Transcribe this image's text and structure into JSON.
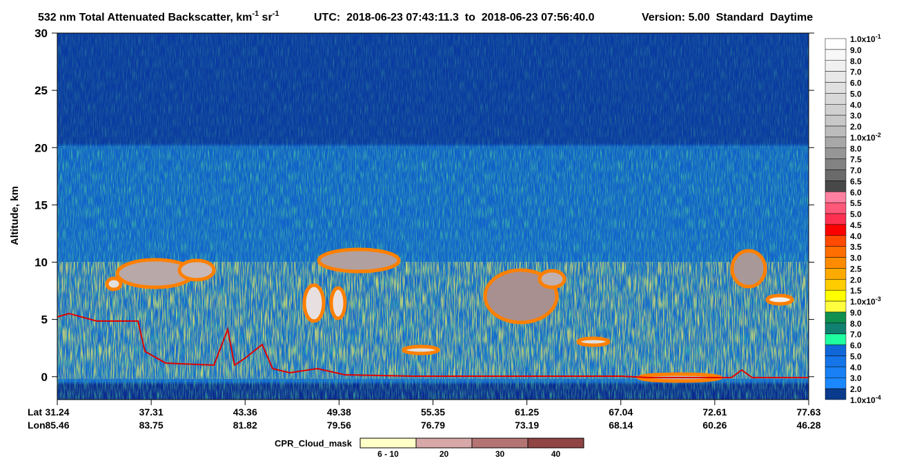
{
  "chart_data": {
    "type": "heatmap",
    "title": {
      "main": "532 nm Total Attenuated Backscatter, km",
      "sup1": "-1",
      "mid": " sr",
      "sup2": "-1",
      "utc": "UTC:  2018-06-23 07:43:11.3  to  2018-06-23 07:56:40.0",
      "version": "Version: 5.00  Standard  Daytime"
    },
    "y_label": "Altitude, km",
    "ylim": [
      -2,
      30
    ],
    "yticks": [
      0,
      5,
      10,
      15,
      20,
      25,
      30
    ],
    "x_row_labels": [
      "Lat",
      "Lon"
    ],
    "lat": [
      "31.24",
      "37.31",
      "43.36",
      "49.38",
      "55.35",
      "61.25",
      "67.04",
      "72.61",
      "77.63"
    ],
    "lon": [
      "85.46",
      "83.75",
      "81.82",
      "79.56",
      "76.79",
      "73.19",
      "68.14",
      "60.26",
      "46.28"
    ],
    "colorbar": {
      "labels": [
        {
          "text": "1.0x10",
          "sup": "-1"
        },
        {
          "text": "9.0"
        },
        {
          "text": "8.0"
        },
        {
          "text": "7.0"
        },
        {
          "text": "6.0"
        },
        {
          "text": "5.0"
        },
        {
          "text": "4.0"
        },
        {
          "text": "3.0"
        },
        {
          "text": "2.0"
        },
        {
          "text": "1.0x10",
          "sup": "-2"
        },
        {
          "text": "8.0"
        },
        {
          "text": "7.5"
        },
        {
          "text": "7.0"
        },
        {
          "text": "6.5"
        },
        {
          "text": "6.0"
        },
        {
          "text": "5.5"
        },
        {
          "text": "5.0"
        },
        {
          "text": "4.5"
        },
        {
          "text": "4.0"
        },
        {
          "text": "3.5"
        },
        {
          "text": "3.0"
        },
        {
          "text": "2.5"
        },
        {
          "text": "2.0"
        },
        {
          "text": "1.5"
        },
        {
          "text": "1.0x10",
          "sup": "-3"
        },
        {
          "text": "9.0"
        },
        {
          "text": "8.0"
        },
        {
          "text": "7.0"
        },
        {
          "text": "6.0"
        },
        {
          "text": "5.0"
        },
        {
          "text": "4.0"
        },
        {
          "text": "3.0"
        },
        {
          "text": "2.0"
        },
        {
          "text": "1.0x10",
          "sup": "-4"
        }
      ],
      "colors": [
        "#ffffff",
        "#f7f7f7",
        "#f0f0f0",
        "#e8e8e8",
        "#e0e0e0",
        "#d8d8d8",
        "#d0d0d0",
        "#c8c8c8",
        "#bcbcbc",
        "#a8a8a8",
        "#969696",
        "#828282",
        "#6a6a6a",
        "#484848",
        "#ff80a0",
        "#ff5878",
        "#ff3050",
        "#ff0000",
        "#ff4a00",
        "#ff6e00",
        "#ff8c00",
        "#ffaa00",
        "#ffcc00",
        "#ffff00",
        "#ffff40",
        "#109050",
        "#108070",
        "#20ffa0",
        "#1068d8",
        "#1474e8",
        "#1880f4",
        "#1c88ff",
        "#0a3a8c",
        "#08289c"
      ]
    },
    "cpr": {
      "label": "CPR_Cloud_mask",
      "classes": [
        "6 - 10",
        "20",
        "30",
        "40"
      ],
      "colors": [
        "#ffffc8",
        "#d8a8a8",
        "#b47474",
        "#904444"
      ]
    }
  }
}
